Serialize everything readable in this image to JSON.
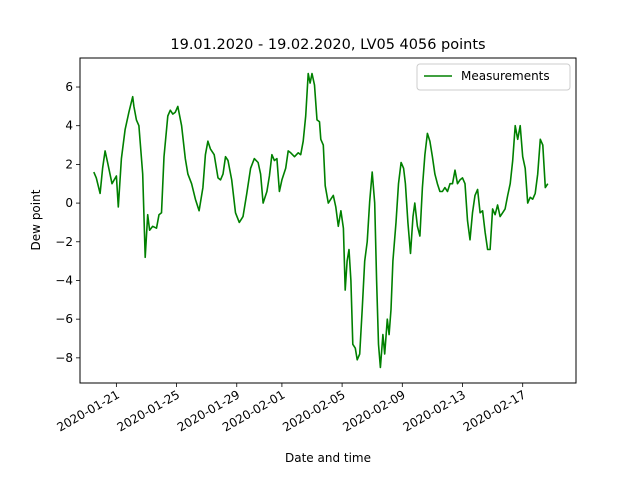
{
  "chart_data": {
    "type": "line",
    "title": "19.01.2020 - 19.02.2020, LV05 4056 points",
    "xlabel": "Date and time",
    "ylabel": "Dew point",
    "ylim": [
      -9.3,
      7.5
    ],
    "xlim": [
      "2020-01-18T14:00",
      "2020-02-20T13:00"
    ],
    "y_ticks": [
      -8,
      -6,
      -4,
      -2,
      0,
      2,
      4,
      6
    ],
    "x_ticks": [
      "2020-01-21",
      "2020-01-25",
      "2020-01-29",
      "2020-02-01",
      "2020-02-05",
      "2020-02-09",
      "2020-02-13",
      "2020-02-17"
    ],
    "legend_position": "top-right",
    "grid": false,
    "colors": {
      "series": "#008000"
    },
    "series": [
      {
        "name": "Measurements",
        "points": [
          [
            "2020-01-19T12:00",
            1.6
          ],
          [
            "2020-01-19T16:00",
            1.3
          ],
          [
            "2020-01-19T22:00",
            0.5
          ],
          [
            "2020-01-20T02:00",
            1.8
          ],
          [
            "2020-01-20T06:00",
            2.7
          ],
          [
            "2020-01-20T10:00",
            2.1
          ],
          [
            "2020-01-20T17:00",
            1.0
          ],
          [
            "2020-01-21T00:00",
            1.4
          ],
          [
            "2020-01-21T03:00",
            -0.2
          ],
          [
            "2020-01-21T08:00",
            2.3
          ],
          [
            "2020-01-21T14:00",
            3.8
          ],
          [
            "2020-01-21T20:00",
            4.7
          ],
          [
            "2020-01-22T02:00",
            5.5
          ],
          [
            "2020-01-22T04:00",
            5.0
          ],
          [
            "2020-01-22T08:00",
            4.3
          ],
          [
            "2020-01-22T12:00",
            4.0
          ],
          [
            "2020-01-22T18:00",
            1.5
          ],
          [
            "2020-01-22T22:00",
            -2.8
          ],
          [
            "2020-01-23T02:00",
            -0.6
          ],
          [
            "2020-01-23T05:00",
            -1.4
          ],
          [
            "2020-01-23T10:00",
            -1.2
          ],
          [
            "2020-01-23T16:00",
            -1.3
          ],
          [
            "2020-01-23T20:00",
            -0.6
          ],
          [
            "2020-01-24T00:00",
            -0.5
          ],
          [
            "2020-01-24T04:00",
            2.4
          ],
          [
            "2020-01-24T10:00",
            4.5
          ],
          [
            "2020-01-24T14:00",
            4.8
          ],
          [
            "2020-01-24T18:00",
            4.6
          ],
          [
            "2020-01-24T22:00",
            4.7
          ],
          [
            "2020-01-25T02:00",
            5.0
          ],
          [
            "2020-01-25T08:00",
            4.0
          ],
          [
            "2020-01-25T14:00",
            2.3
          ],
          [
            "2020-01-25T18:00",
            1.5
          ],
          [
            "2020-01-26T00:00",
            1.0
          ],
          [
            "2020-01-26T06:00",
            0.2
          ],
          [
            "2020-01-26T12:00",
            -0.4
          ],
          [
            "2020-01-26T18:00",
            0.8
          ],
          [
            "2020-01-26T22:00",
            2.5
          ],
          [
            "2020-01-27T02:00",
            3.2
          ],
          [
            "2020-01-27T06:00",
            2.8
          ],
          [
            "2020-01-27T12:00",
            2.5
          ],
          [
            "2020-01-27T18:00",
            1.3
          ],
          [
            "2020-01-27T22:00",
            1.2
          ],
          [
            "2020-01-28T02:00",
            1.5
          ],
          [
            "2020-01-28T06:00",
            2.4
          ],
          [
            "2020-01-28T10:00",
            2.2
          ],
          [
            "2020-01-28T16:00",
            1.2
          ],
          [
            "2020-01-28T22:00",
            -0.5
          ],
          [
            "2020-01-29T04:00",
            -1.0
          ],
          [
            "2020-01-29T10:00",
            -0.7
          ],
          [
            "2020-01-29T16:00",
            0.5
          ],
          [
            "2020-01-29T22:00",
            1.8
          ],
          [
            "2020-01-30T04:00",
            2.3
          ],
          [
            "2020-01-30T10:00",
            2.1
          ],
          [
            "2020-01-30T14:00",
            1.5
          ],
          [
            "2020-01-30T18:00",
            0.0
          ],
          [
            "2020-01-31T00:00",
            0.6
          ],
          [
            "2020-01-31T04:00",
            1.4
          ],
          [
            "2020-01-31T08:00",
            2.5
          ],
          [
            "2020-01-31T12:00",
            2.2
          ],
          [
            "2020-01-31T16:00",
            2.3
          ],
          [
            "2020-01-31T20:00",
            0.6
          ],
          [
            "2020-02-01T00:00",
            1.2
          ],
          [
            "2020-02-01T06:00",
            1.8
          ],
          [
            "2020-02-01T10:00",
            2.7
          ],
          [
            "2020-02-01T14:00",
            2.6
          ],
          [
            "2020-02-01T20:00",
            2.4
          ],
          [
            "2020-02-02T02:00",
            2.6
          ],
          [
            "2020-02-02T06:00",
            2.5
          ],
          [
            "2020-02-02T10:00",
            3.2
          ],
          [
            "2020-02-02T14:00",
            4.5
          ],
          [
            "2020-02-02T18:00",
            6.7
          ],
          [
            "2020-02-02T21:00",
            6.2
          ],
          [
            "2020-02-03T00:00",
            6.7
          ],
          [
            "2020-02-03T04:00",
            6.1
          ],
          [
            "2020-02-03T08:00",
            4.3
          ],
          [
            "2020-02-03T12:00",
            4.2
          ],
          [
            "2020-02-03T14:00",
            3.3
          ],
          [
            "2020-02-03T18:00",
            3.0
          ],
          [
            "2020-02-03T21:00",
            0.9
          ],
          [
            "2020-02-04T02:00",
            0.0
          ],
          [
            "2020-02-04T06:00",
            0.2
          ],
          [
            "2020-02-04T10:00",
            0.4
          ],
          [
            "2020-02-04T14:00",
            -0.2
          ],
          [
            "2020-02-04T18:00",
            -1.2
          ],
          [
            "2020-02-04T22:00",
            -0.4
          ],
          [
            "2020-02-05T02:00",
            -1.3
          ],
          [
            "2020-02-05T05:00",
            -4.5
          ],
          [
            "2020-02-05T08:00",
            -3.0
          ],
          [
            "2020-02-05T11:00",
            -2.4
          ],
          [
            "2020-02-05T14:00",
            -4.0
          ],
          [
            "2020-02-05T17:00",
            -7.3
          ],
          [
            "2020-02-05T21:00",
            -7.5
          ],
          [
            "2020-02-06T00:00",
            -8.1
          ],
          [
            "2020-02-06T04:00",
            -7.8
          ],
          [
            "2020-02-06T08:00",
            -5.5
          ],
          [
            "2020-02-06T12:00",
            -3.0
          ],
          [
            "2020-02-06T16:00",
            -2.0
          ],
          [
            "2020-02-06T20:00",
            0.1
          ],
          [
            "2020-02-07T00:00",
            1.6
          ],
          [
            "2020-02-07T04:00",
            0.0
          ],
          [
            "2020-02-07T07:00",
            -4.0
          ],
          [
            "2020-02-07T10:00",
            -7.3
          ],
          [
            "2020-02-07T13:00",
            -8.5
          ],
          [
            "2020-02-07T17:00",
            -6.8
          ],
          [
            "2020-02-07T20:00",
            -7.8
          ],
          [
            "2020-02-08T00:00",
            -6.0
          ],
          [
            "2020-02-08T03:00",
            -6.8
          ],
          [
            "2020-02-08T06:00",
            -5.5
          ],
          [
            "2020-02-08T09:00",
            -3.0
          ],
          [
            "2020-02-08T14:00",
            -1.0
          ],
          [
            "2020-02-08T18:00",
            1.0
          ],
          [
            "2020-02-08T22:00",
            2.1
          ],
          [
            "2020-02-09T02:00",
            1.8
          ],
          [
            "2020-02-09T05:00",
            1.0
          ],
          [
            "2020-02-09T09:00",
            -1.0
          ],
          [
            "2020-02-09T13:00",
            -2.6
          ],
          [
            "2020-02-09T17:00",
            -0.7
          ],
          [
            "2020-02-09T20:00",
            0.0
          ],
          [
            "2020-02-10T00:00",
            -1.2
          ],
          [
            "2020-02-10T04:00",
            -1.7
          ],
          [
            "2020-02-10T08:00",
            0.8
          ],
          [
            "2020-02-10T12:00",
            2.5
          ],
          [
            "2020-02-10T16:00",
            3.6
          ],
          [
            "2020-02-10T20:00",
            3.2
          ],
          [
            "2020-02-11T00:00",
            2.4
          ],
          [
            "2020-02-11T04:00",
            1.5
          ],
          [
            "2020-02-11T08:00",
            1.0
          ],
          [
            "2020-02-11T12:00",
            0.6
          ],
          [
            "2020-02-11T16:00",
            0.6
          ],
          [
            "2020-02-11T20:00",
            0.8
          ],
          [
            "2020-02-12T00:00",
            0.6
          ],
          [
            "2020-02-12T04:00",
            1.0
          ],
          [
            "2020-02-12T08:00",
            1.0
          ],
          [
            "2020-02-12T12:00",
            1.7
          ],
          [
            "2020-02-12T16:00",
            1.0
          ],
          [
            "2020-02-12T20:00",
            1.2
          ],
          [
            "2020-02-13T00:00",
            1.3
          ],
          [
            "2020-02-13T04:00",
            1.0
          ],
          [
            "2020-02-13T08:00",
            -0.9
          ],
          [
            "2020-02-13T12:00",
            -1.9
          ],
          [
            "2020-02-13T16:00",
            -0.5
          ],
          [
            "2020-02-13T20:00",
            0.4
          ],
          [
            "2020-02-14T00:00",
            0.7
          ],
          [
            "2020-02-14T04:00",
            -0.5
          ],
          [
            "2020-02-14T08:00",
            -0.4
          ],
          [
            "2020-02-14T12:00",
            -1.5
          ],
          [
            "2020-02-14T16:00",
            -2.4
          ],
          [
            "2020-02-14T20:00",
            -2.4
          ],
          [
            "2020-02-15T00:00",
            -0.3
          ],
          [
            "2020-02-15T04:00",
            -0.6
          ],
          [
            "2020-02-15T08:00",
            -0.1
          ],
          [
            "2020-02-15T12:00",
            -0.7
          ],
          [
            "2020-02-15T16:00",
            -0.5
          ],
          [
            "2020-02-15T20:00",
            -0.3
          ],
          [
            "2020-02-16T00:00",
            0.4
          ],
          [
            "2020-02-16T04:00",
            1.0
          ],
          [
            "2020-02-16T08:00",
            2.2
          ],
          [
            "2020-02-16T12:00",
            4.0
          ],
          [
            "2020-02-16T16:00",
            3.3
          ],
          [
            "2020-02-16T20:00",
            4.0
          ],
          [
            "2020-02-17T00:00",
            2.4
          ],
          [
            "2020-02-17T04:00",
            1.8
          ],
          [
            "2020-02-17T08:00",
            0.0
          ],
          [
            "2020-02-17T12:00",
            0.3
          ],
          [
            "2020-02-17T16:00",
            0.2
          ],
          [
            "2020-02-17T20:00",
            0.5
          ],
          [
            "2020-02-18T00:00",
            1.5
          ],
          [
            "2020-02-18T04:00",
            3.3
          ],
          [
            "2020-02-18T08:00",
            3.0
          ],
          [
            "2020-02-18T12:00",
            0.8
          ],
          [
            "2020-02-18T16:00",
            1.0
          ]
        ]
      }
    ]
  }
}
